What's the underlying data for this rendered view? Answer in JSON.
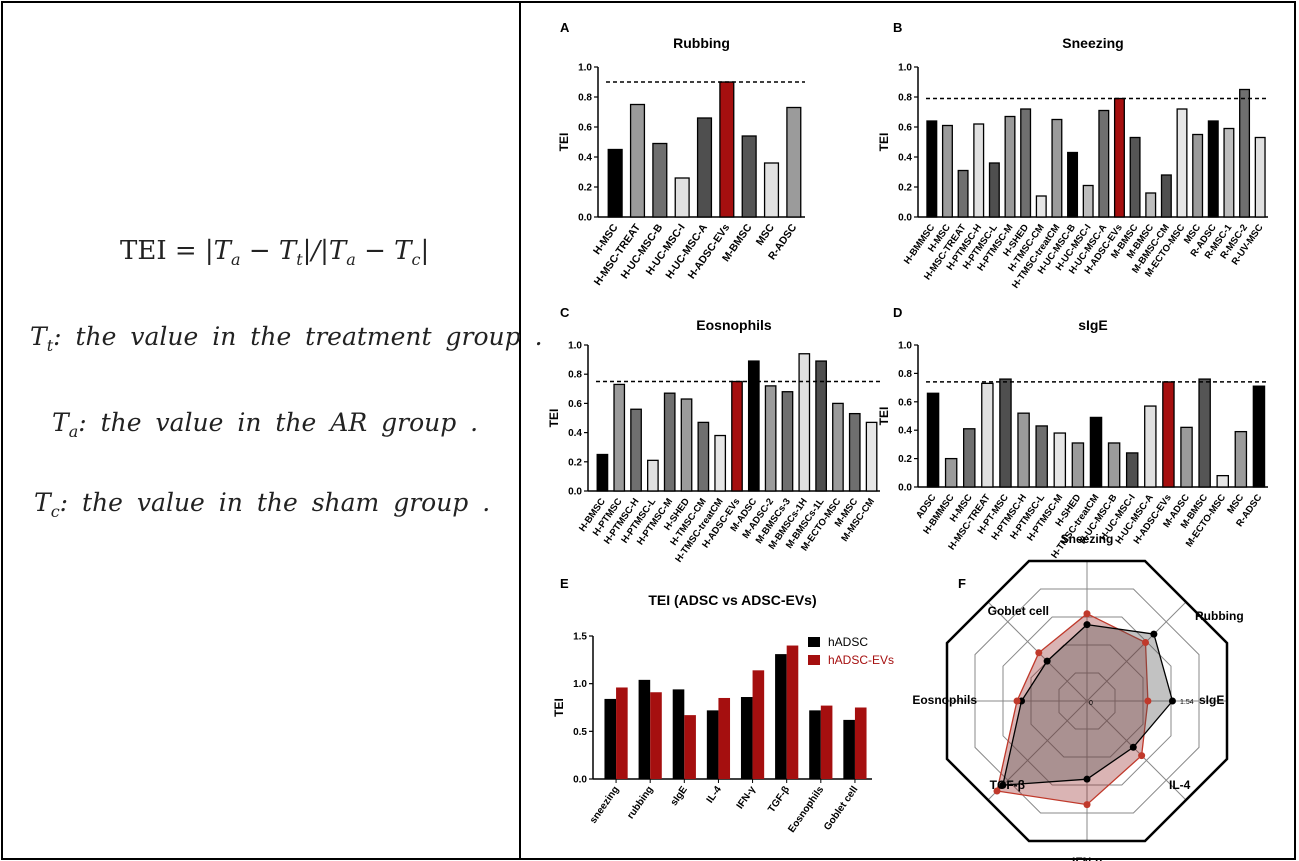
{
  "formula": {
    "main_lhs": "TEI = ",
    "main_rhs": "|T_a − T_t|/|T_a − T_c|",
    "lines": [
      {
        "sym": "T",
        "sub": "t",
        "text": ":  the  value  in  the  treatment  group ."
      },
      {
        "sym": "T",
        "sub": "a",
        "text": ":  the  value  in  the  AR  group ."
      },
      {
        "sym": "T",
        "sub": "c",
        "text": ":  the  value  in  the  sham  group ."
      }
    ]
  },
  "chart_data": [
    {
      "panel": "A",
      "type": "bar",
      "title": "Rubbing",
      "ylabel": "TEI",
      "ylim": [
        0,
        1.0
      ],
      "yticks": [
        "0.0",
        "0.2",
        "0.4",
        "0.6",
        "0.8",
        "1.0"
      ],
      "reference_line": 0.9,
      "categories": [
        "H-MSC",
        "H-MSC-TREAT",
        "H-UC-MSC-B",
        "H-UC-MSC-I",
        "H-UC-MSC-A",
        "H-ADSC-EVs",
        "M-BMSC",
        "MSC",
        "R-ADSC"
      ],
      "values": [
        0.45,
        0.75,
        0.49,
        0.26,
        0.66,
        0.9,
        0.54,
        0.36,
        0.73
      ],
      "colors": [
        "#000000",
        "#9b9b9b",
        "#6f6f6f",
        "#e0e0e0",
        "#4f4f4f",
        "#a50f0f",
        "#555555",
        "#e2e2e2",
        "#9b9b9b"
      ]
    },
    {
      "panel": "B",
      "type": "bar",
      "title": "Sneezing",
      "ylabel": "TEI",
      "ylim": [
        0,
        1.0
      ],
      "yticks": [
        "0.0",
        "0.2",
        "0.4",
        "0.6",
        "0.8",
        "1.0"
      ],
      "reference_line": 0.79,
      "categories": [
        "H-BMMSC",
        "H-MSC",
        "H-MSC-TREAT",
        "H-PTMSC-H",
        "H-PTMSC-L",
        "H-PTMSC-M",
        "H-SHED",
        "H-TMSC-CM",
        "H-TMSC-treatCM",
        "H-UC-MSC-B",
        "H-UC-MSC-I",
        "H-UC-MSC-A",
        "H-ADSC-EVs",
        "M-BMSC",
        "M-BMSC",
        "M-BMSC-CM",
        "M-ECTO-MSC",
        "MSC",
        "R-ADSC",
        "R-MSC-1",
        "R-MSC-2",
        "R-UV-MSC"
      ],
      "values": [
        0.64,
        0.61,
        0.31,
        0.62,
        0.36,
        0.67,
        0.72,
        0.14,
        0.65,
        0.43,
        0.21,
        0.71,
        0.79,
        0.53,
        0.16,
        0.28,
        0.72,
        0.55,
        0.64,
        0.59,
        0.85,
        0.53
      ],
      "colors": [
        "#000000",
        "#9b9b9b",
        "#6f6f6f",
        "#e0e0e0",
        "#4f4f4f",
        "#9b9b9b",
        "#6f6f6f",
        "#e6e6e6",
        "#9b9b9b",
        "#000000",
        "#bdbdbd",
        "#6f6f6f",
        "#a50f0f",
        "#555555",
        "#bdbdbd",
        "#4f4f4f",
        "#e6e6e6",
        "#9b9b9b",
        "#000000",
        "#bdbdbd",
        "#6f6f6f",
        "#e0e0e0"
      ]
    },
    {
      "panel": "C",
      "type": "bar",
      "title": "Eosnophils",
      "ylabel": "TEI",
      "ylim": [
        0,
        1.0
      ],
      "yticks": [
        "0.0",
        "0.2",
        "0.4",
        "0.6",
        "0.8",
        "1.0"
      ],
      "reference_line": 0.75,
      "categories": [
        "H-BMSC",
        "H-PTMSC",
        "H-PTMSC-H",
        "H-PTMSC-L",
        "H-PTMSC-M",
        "H-SHED",
        "H-TMSC-CM",
        "H-TMSC-treatCM",
        "H-ADSC-EVs",
        "M-ADSC",
        "M-ADSC-2",
        "M-BMSCs-3",
        "M-BMSCs-1H",
        "M-BMSCs-1L",
        "M-ECTO-MSC",
        "M-MSC",
        "M-MSC-CM"
      ],
      "values": [
        0.25,
        0.73,
        0.56,
        0.21,
        0.67,
        0.63,
        0.47,
        0.38,
        0.75,
        0.89,
        0.72,
        0.68,
        0.94,
        0.89,
        0.6,
        0.53,
        0.47
      ],
      "colors": [
        "#000000",
        "#9b9b9b",
        "#6f6f6f",
        "#e0e0e0",
        "#6f6f6f",
        "#9b9b9b",
        "#6f6f6f",
        "#e6e6e6",
        "#a50f0f",
        "#000000",
        "#9b9b9b",
        "#6f6f6f",
        "#e0e0e0",
        "#4f4f4f",
        "#9b9b9b",
        "#6f6f6f",
        "#e6e6e6"
      ]
    },
    {
      "panel": "D",
      "type": "bar",
      "title": "sIgE",
      "ylabel": "TEI",
      "ylim": [
        0,
        1.0
      ],
      "yticks": [
        "0.0",
        "0.2",
        "0.4",
        "0.6",
        "0.8",
        "1.0"
      ],
      "reference_line": 0.74,
      "categories": [
        "ADSC",
        "H-BMMSC",
        "H-MSC",
        "H-MSC-TREAT",
        "H-PT-MSC",
        "H-PTMSC-H",
        "H-PTMSC-L",
        "H-PTMSC-M",
        "H-SHED",
        "H-TMSC-treatCM",
        "H-UC-MSC-B",
        "H-UC-MSC-I",
        "H-UC-MSC-A",
        "H-ADSC-EVs",
        "M-ADSC",
        "M-BMSC",
        "M-ECTO-MSC",
        "MSC",
        "R-ADSC"
      ],
      "values": [
        0.66,
        0.2,
        0.41,
        0.73,
        0.76,
        0.52,
        0.43,
        0.38,
        0.31,
        0.49,
        0.31,
        0.24,
        0.57,
        0.74,
        0.42,
        0.76,
        0.08,
        0.39,
        0.71
      ],
      "colors": [
        "#000000",
        "#9b9b9b",
        "#6f6f6f",
        "#e0e0e0",
        "#4f4f4f",
        "#9b9b9b",
        "#6f6f6f",
        "#e6e6e6",
        "#9b9b9b",
        "#000000",
        "#9b9b9b",
        "#4f4f4f",
        "#e0e0e0",
        "#a50f0f",
        "#9b9b9b",
        "#555555",
        "#e6e6e6",
        "#9b9b9b",
        "#000000"
      ]
    },
    {
      "panel": "E",
      "type": "bar",
      "title": "TEI (ADSC vs ADSC-EVs)",
      "ylabel": "TEI",
      "ylim": [
        0,
        1.5
      ],
      "yticks": [
        "0.0",
        "0.5",
        "1.0",
        "1.5"
      ],
      "categories": [
        "sneezing",
        "rubbing",
        "sIgE",
        "IL-4",
        "IFN-γ",
        "TGF-β",
        "Eosnophils",
        "Goblet cell"
      ],
      "series": [
        {
          "name": "hADSC",
          "color": "#000000",
          "values": [
            0.84,
            1.04,
            0.94,
            0.72,
            0.86,
            1.31,
            0.72,
            0.62
          ]
        },
        {
          "name": "hADSC-EVs",
          "color": "#a50f0f",
          "values": [
            0.96,
            0.91,
            0.67,
            0.85,
            1.14,
            1.4,
            0.77,
            0.75
          ]
        }
      ]
    },
    {
      "panel": "F",
      "type": "radar",
      "rmax": 1.54,
      "scale_label": "1.54",
      "center_label": "0",
      "axes": [
        "Sneezing",
        "Rubbing",
        "sIgE",
        "IL-4",
        "IFN-γ",
        "TGF-β",
        "Eosnophils",
        "Goblet cell"
      ],
      "series": [
        {
          "name": "hADSC",
          "color": "#000000",
          "fill": "rgba(80,80,80,0.35)",
          "values": [
            0.84,
            1.04,
            0.94,
            0.72,
            0.86,
            1.31,
            0.72,
            0.62
          ]
        },
        {
          "name": "hADSC-EVs",
          "color": "#c0392b",
          "fill": "rgba(150,40,40,0.35)",
          "values": [
            0.96,
            0.91,
            0.67,
            0.85,
            1.14,
            1.4,
            0.77,
            0.75
          ]
        }
      ]
    }
  ]
}
